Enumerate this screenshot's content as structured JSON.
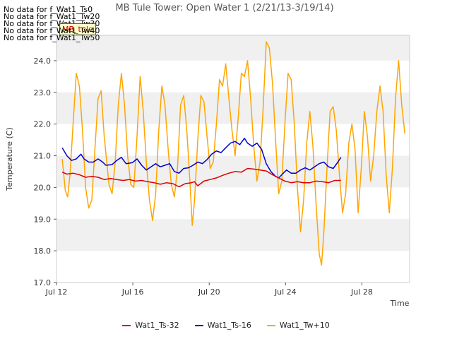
{
  "chart_data": {
    "type": "line",
    "title": "MB Tule Tower: Open Water 1 (2/21/13-3/19/14)",
    "xlabel": "Time",
    "ylabel": "Temperature (C)",
    "x_range": [
      "Jul 12",
      "Jul 30 12:00"
    ],
    "x_days_range": [
      12,
      30.5
    ],
    "ylim": [
      17.0,
      24.8
    ],
    "xticks": [
      {
        "day": 12,
        "label": "Jul 12"
      },
      {
        "day": 16,
        "label": "Jul 16"
      },
      {
        "day": 20,
        "label": "Jul 20"
      },
      {
        "day": 24,
        "label": "Jul 24"
      },
      {
        "day": 28,
        "label": "Jul 28"
      }
    ],
    "yticks": [
      17.0,
      18.0,
      19.0,
      20.0,
      21.0,
      22.0,
      23.0,
      24.0
    ],
    "background_bands": "alternating light grey every 1.0 C",
    "grid": false,
    "legend_position": "bottom-center",
    "no_data_messages": [
      "No data for f_Wat1_Ts0",
      "No data for f_Wat1_Tw20",
      "No data for f_Wat1_Tw30",
      "No data for f_Wat1_Tw40",
      "No data for f_Wat1_Tw50"
    ],
    "badge_label": "MB_tule",
    "series": [
      {
        "name": "Wat1_Ts-32",
        "color": "#dd0000",
        "points": [
          [
            12.3,
            20.48
          ],
          [
            12.6,
            20.42
          ],
          [
            13.0,
            20.45
          ],
          [
            13.4,
            20.4
          ],
          [
            13.8,
            20.32
          ],
          [
            14.2,
            20.35
          ],
          [
            14.6,
            20.32
          ],
          [
            15.0,
            20.25
          ],
          [
            15.4,
            20.28
          ],
          [
            15.8,
            20.25
          ],
          [
            16.2,
            20.22
          ],
          [
            16.6,
            20.25
          ],
          [
            17.0,
            20.2
          ],
          [
            17.4,
            20.22
          ],
          [
            17.8,
            20.18
          ],
          [
            18.2,
            20.15
          ],
          [
            18.6,
            20.1
          ],
          [
            19.0,
            20.15
          ],
          [
            19.4,
            20.12
          ],
          [
            19.8,
            20.02
          ],
          [
            20.2,
            20.12
          ],
          [
            20.6,
            20.15
          ],
          [
            20.8,
            20.18
          ],
          [
            21.0,
            20.05
          ],
          [
            21.4,
            20.2
          ],
          [
            21.8,
            20.25
          ],
          [
            22.2,
            20.3
          ],
          [
            22.6,
            20.38
          ],
          [
            23.0,
            20.45
          ],
          [
            23.4,
            20.5
          ],
          [
            23.8,
            20.48
          ],
          [
            24.2,
            20.6
          ],
          [
            24.6,
            20.58
          ],
          [
            25.0,
            20.55
          ],
          [
            25.4,
            20.52
          ],
          [
            25.8,
            20.4
          ],
          [
            26.2,
            20.3
          ],
          [
            26.6,
            20.2
          ],
          [
            27.0,
            20.15
          ],
          [
            27.4,
            20.18
          ],
          [
            27.8,
            20.15
          ],
          [
            28.2,
            20.15
          ],
          [
            28.6,
            20.2
          ],
          [
            29.0,
            20.18
          ],
          [
            29.4,
            20.15
          ],
          [
            29.8,
            20.22
          ],
          [
            30.2,
            20.22
          ]
        ]
      },
      {
        "name": "Wat1_Ts-16",
        "color": "#0000cc",
        "points": [
          [
            12.3,
            21.25
          ],
          [
            12.6,
            21.0
          ],
          [
            12.9,
            20.85
          ],
          [
            13.2,
            20.9
          ],
          [
            13.5,
            21.05
          ],
          [
            13.7,
            20.9
          ],
          [
            14.0,
            20.8
          ],
          [
            14.3,
            20.8
          ],
          [
            14.6,
            20.9
          ],
          [
            14.9,
            20.8
          ],
          [
            15.1,
            20.7
          ],
          [
            15.5,
            20.72
          ],
          [
            15.8,
            20.85
          ],
          [
            16.1,
            20.95
          ],
          [
            16.4,
            20.75
          ],
          [
            16.8,
            20.78
          ],
          [
            17.1,
            20.9
          ],
          [
            17.4,
            20.7
          ],
          [
            17.7,
            20.55
          ],
          [
            18.0,
            20.65
          ],
          [
            18.3,
            20.75
          ],
          [
            18.6,
            20.65
          ],
          [
            18.9,
            20.7
          ],
          [
            19.2,
            20.75
          ],
          [
            19.5,
            20.5
          ],
          [
            19.8,
            20.45
          ],
          [
            20.1,
            20.6
          ],
          [
            20.4,
            20.62
          ],
          [
            20.7,
            20.7
          ],
          [
            21.0,
            20.8
          ],
          [
            21.3,
            20.75
          ],
          [
            21.6,
            20.88
          ],
          [
            21.9,
            21.05
          ],
          [
            22.2,
            21.15
          ],
          [
            22.5,
            21.1
          ],
          [
            22.8,
            21.25
          ],
          [
            23.1,
            21.4
          ],
          [
            23.4,
            21.45
          ],
          [
            23.7,
            21.35
          ],
          [
            24.0,
            21.55
          ],
          [
            24.2,
            21.4
          ],
          [
            24.5,
            21.3
          ],
          [
            24.8,
            21.4
          ],
          [
            25.1,
            21.2
          ],
          [
            25.4,
            20.75
          ],
          [
            25.7,
            20.5
          ],
          [
            26.0,
            20.35
          ],
          [
            26.2,
            20.3
          ],
          [
            26.4,
            20.4
          ],
          [
            26.7,
            20.55
          ],
          [
            27.0,
            20.45
          ],
          [
            27.3,
            20.45
          ],
          [
            27.6,
            20.55
          ],
          [
            27.9,
            20.62
          ],
          [
            28.2,
            20.55
          ],
          [
            28.5,
            20.65
          ],
          [
            28.8,
            20.75
          ],
          [
            29.1,
            20.8
          ],
          [
            29.4,
            20.65
          ],
          [
            29.7,
            20.6
          ],
          [
            30.0,
            20.8
          ],
          [
            30.2,
            20.95
          ]
        ]
      },
      {
        "name": "Wat1_Tw+10",
        "color": "#ffa500",
        "points": [
          [
            12.3,
            20.9
          ],
          [
            12.5,
            19.9
          ],
          [
            12.65,
            19.7
          ],
          [
            12.8,
            20.4
          ],
          [
            13.0,
            22.0
          ],
          [
            13.2,
            23.6
          ],
          [
            13.4,
            23.2
          ],
          [
            13.6,
            21.8
          ],
          [
            13.8,
            20.0
          ],
          [
            14.0,
            19.35
          ],
          [
            14.2,
            19.6
          ],
          [
            14.4,
            21.2
          ],
          [
            14.6,
            22.8
          ],
          [
            14.8,
            23.05
          ],
          [
            15.0,
            21.6
          ],
          [
            15.3,
            20.1
          ],
          [
            15.5,
            19.8
          ],
          [
            15.7,
            20.8
          ],
          [
            15.9,
            22.6
          ],
          [
            16.1,
            23.6
          ],
          [
            16.3,
            22.6
          ],
          [
            16.5,
            21.0
          ],
          [
            16.7,
            20.1
          ],
          [
            16.9,
            20.0
          ],
          [
            17.1,
            21.6
          ],
          [
            17.3,
            23.5
          ],
          [
            17.5,
            22.4
          ],
          [
            17.7,
            20.8
          ],
          [
            17.9,
            19.6
          ],
          [
            18.1,
            18.95
          ],
          [
            18.3,
            19.8
          ],
          [
            18.5,
            21.8
          ],
          [
            18.7,
            23.2
          ],
          [
            18.9,
            22.6
          ],
          [
            19.1,
            21.2
          ],
          [
            19.3,
            20.1
          ],
          [
            19.5,
            19.7
          ],
          [
            19.7,
            20.6
          ],
          [
            19.9,
            22.6
          ],
          [
            20.1,
            22.9
          ],
          [
            20.3,
            21.8
          ],
          [
            20.5,
            20.2
          ],
          [
            20.65,
            18.8
          ],
          [
            20.8,
            19.6
          ],
          [
            21.0,
            21.5
          ],
          [
            21.2,
            22.9
          ],
          [
            21.4,
            22.7
          ],
          [
            21.6,
            21.6
          ],
          [
            21.8,
            20.6
          ],
          [
            22.0,
            20.8
          ],
          [
            22.2,
            22.0
          ],
          [
            22.4,
            23.4
          ],
          [
            22.6,
            23.2
          ],
          [
            22.8,
            23.9
          ],
          [
            23.0,
            22.8
          ],
          [
            23.2,
            21.8
          ],
          [
            23.4,
            21.0
          ],
          [
            23.6,
            22.2
          ],
          [
            23.8,
            23.6
          ],
          [
            24.0,
            23.5
          ],
          [
            24.2,
            24.0
          ],
          [
            24.4,
            22.8
          ],
          [
            24.6,
            21.3
          ],
          [
            24.8,
            20.2
          ],
          [
            25.0,
            20.8
          ],
          [
            25.2,
            22.5
          ],
          [
            25.4,
            24.6
          ],
          [
            25.6,
            24.4
          ],
          [
            25.8,
            23.3
          ],
          [
            26.0,
            21.5
          ],
          [
            26.2,
            19.8
          ],
          [
            26.4,
            20.2
          ],
          [
            26.6,
            22.0
          ],
          [
            26.8,
            23.6
          ],
          [
            27.0,
            23.4
          ],
          [
            27.2,
            22.0
          ],
          [
            27.4,
            20.0
          ],
          [
            27.6,
            18.6
          ],
          [
            27.8,
            19.6
          ],
          [
            28.0,
            21.4
          ],
          [
            28.2,
            22.4
          ],
          [
            28.4,
            21.3
          ],
          [
            28.6,
            19.5
          ],
          [
            28.8,
            17.9
          ],
          [
            28.95,
            17.55
          ],
          [
            29.1,
            18.6
          ],
          [
            29.3,
            20.6
          ],
          [
            29.5,
            22.4
          ],
          [
            29.7,
            22.55
          ],
          [
            29.9,
            21.8
          ],
          [
            30.1,
            20.4
          ],
          [
            30.3,
            19.2
          ],
          [
            30.5,
            19.8
          ],
          [
            30.7,
            21.4
          ],
          [
            30.9,
            22.0
          ],
          [
            31.1,
            21.2
          ],
          [
            31.3,
            19.2
          ],
          [
            31.5,
            20.6
          ],
          [
            31.7,
            22.4
          ],
          [
            31.9,
            21.6
          ],
          [
            32.1,
            20.2
          ],
          [
            32.3,
            21.0
          ],
          [
            32.5,
            22.4
          ],
          [
            32.7,
            23.2
          ],
          [
            32.9,
            22.4
          ],
          [
            33.1,
            20.4
          ],
          [
            33.3,
            19.2
          ],
          [
            33.5,
            20.6
          ],
          [
            33.7,
            22.8
          ],
          [
            33.9,
            24.0
          ],
          [
            34.1,
            22.6
          ],
          [
            34.3,
            21.7
          ]
        ]
      }
    ]
  }
}
